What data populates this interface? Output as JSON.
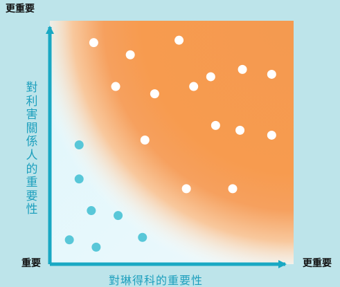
{
  "labels": {
    "top": "更重要",
    "left": "重要",
    "right": "更重要",
    "x_axis": "對琳得科的重要性",
    "y_axis": "對利害關係人的重要性"
  },
  "colors": {
    "background": "#bde4ea",
    "axis": "#19a8c3",
    "orange_core": "#f49b52",
    "orange_edge": "#f7b57d",
    "inner_light": "#e7f7fb",
    "white_point": "#ffffff",
    "cyan_point": "#58c7d8"
  },
  "chart_data": {
    "type": "scatter",
    "x_range": [
      0,
      1
    ],
    "y_range": [
      0,
      1
    ],
    "groups": [
      {
        "name": "white",
        "color": "#ffffff",
        "points": [
          [
            0.18,
            0.91
          ],
          [
            0.33,
            0.86
          ],
          [
            0.53,
            0.92
          ],
          [
            0.66,
            0.77
          ],
          [
            0.79,
            0.8
          ],
          [
            0.91,
            0.78
          ],
          [
            0.27,
            0.73
          ],
          [
            0.43,
            0.7
          ],
          [
            0.59,
            0.73
          ],
          [
            0.68,
            0.57
          ],
          [
            0.78,
            0.55
          ],
          [
            0.91,
            0.53
          ],
          [
            0.39,
            0.51
          ],
          [
            0.56,
            0.31
          ],
          [
            0.75,
            0.31
          ]
        ]
      },
      {
        "name": "cyan",
        "color": "#58c7d8",
        "points": [
          [
            0.12,
            0.49
          ],
          [
            0.12,
            0.35
          ],
          [
            0.17,
            0.22
          ],
          [
            0.28,
            0.2
          ],
          [
            0.08,
            0.1
          ],
          [
            0.19,
            0.07
          ],
          [
            0.38,
            0.11
          ]
        ]
      }
    ]
  }
}
